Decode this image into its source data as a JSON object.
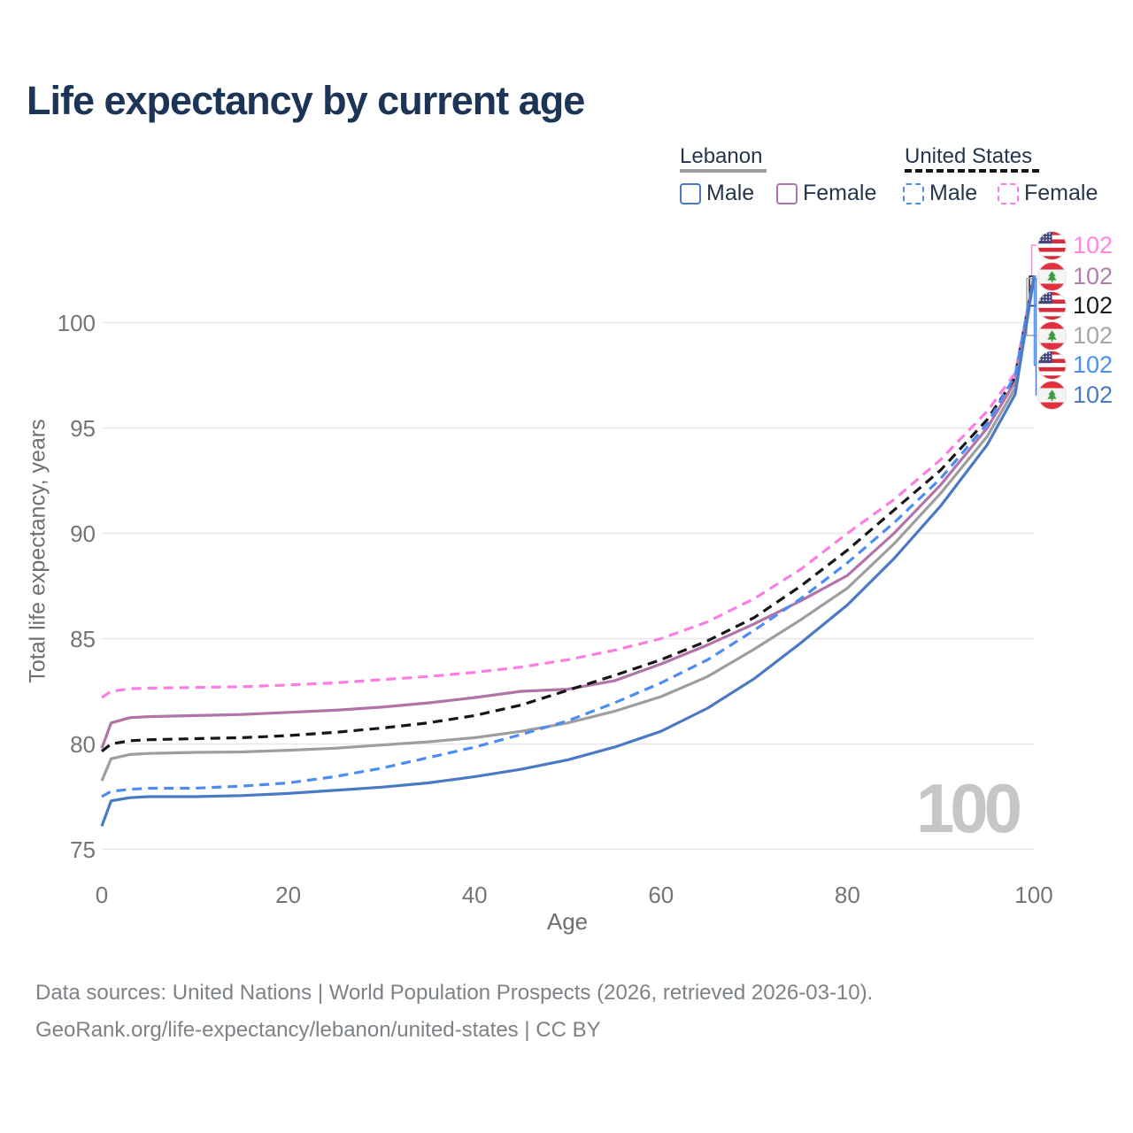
{
  "page": {
    "title": "Life expectancy by current age"
  },
  "legend": {
    "lebanon": {
      "title": "Lebanon",
      "male_label": "Male",
      "female_label": "Female",
      "male_color": "#4a7ac4",
      "female_color": "#b273a9",
      "underline_color": "#9e9e9e",
      "underline_style": "solid"
    },
    "united_states": {
      "title": "United States",
      "male_label": "Male",
      "female_label": "Female",
      "male_color": "#4b8cf5",
      "female_color": "#fb7de4",
      "underline_color": "#161616",
      "underline_style": "dashed"
    }
  },
  "watermark": "100",
  "footer": {
    "line1": "Data sources: United Nations | World Population Prospects (2026, retrieved 2026-03-10).",
    "line2": "GeoRank.org/life-expectancy/lebanon/united-states | CC BY"
  },
  "chart_data": {
    "type": "line",
    "title": "Life expectancy by current age",
    "xlabel": "Age",
    "ylabel": "Total life expectancy, years",
    "xlim": [
      0,
      100
    ],
    "ylim": [
      74.5,
      103
    ],
    "x_ticks": [
      0,
      20,
      40,
      60,
      80,
      100
    ],
    "y_ticks": [
      75,
      80,
      85,
      90,
      95,
      100
    ],
    "grid": "horizontal-only",
    "legend_position": "top-right",
    "gridline_color": "#e8e8e8",
    "ages": [
      0,
      1,
      3,
      5,
      10,
      15,
      20,
      25,
      30,
      35,
      40,
      45,
      50,
      55,
      60,
      65,
      70,
      75,
      80,
      85,
      90,
      95,
      98,
      100
    ],
    "series": [
      {
        "name": "United States Female",
        "country": "united-states",
        "sex": "female",
        "line_style": "dashed",
        "color": "#fb7de4",
        "label_color": "#ff85e2",
        "end_label": "102",
        "values": [
          82.2,
          82.5,
          82.62,
          82.65,
          82.68,
          82.72,
          82.8,
          82.9,
          83.05,
          83.2,
          83.4,
          83.65,
          84.0,
          84.45,
          85.0,
          85.8,
          86.9,
          88.3,
          90.0,
          91.6,
          93.5,
          95.8,
          97.6,
          102.2
        ]
      },
      {
        "name": "Lebanon Female",
        "country": "lebanon",
        "sex": "female",
        "line_style": "solid",
        "color": "#b273a9",
        "label_color": "#b07fad",
        "end_label": "102",
        "values": [
          79.8,
          81.0,
          81.25,
          81.3,
          81.35,
          81.4,
          81.5,
          81.6,
          81.75,
          81.95,
          82.2,
          82.5,
          82.6,
          83.0,
          83.8,
          84.7,
          85.7,
          86.8,
          88.0,
          90.0,
          92.3,
          95.0,
          97.2,
          102.2
        ]
      },
      {
        "name": "United States Both sexes",
        "country": "united-states",
        "sex": "both",
        "line_style": "dashed",
        "color": "#161616",
        "label_color": "#1c1c1c",
        "end_label": "102",
        "values": [
          79.65,
          80.0,
          80.15,
          80.2,
          80.25,
          80.3,
          80.4,
          80.55,
          80.75,
          81.0,
          81.35,
          81.85,
          82.55,
          83.25,
          84.0,
          84.9,
          86.0,
          87.5,
          89.2,
          91.1,
          93.0,
          95.4,
          97.4,
          102.2
        ]
      },
      {
        "name": "Lebanon Both sexes",
        "country": "lebanon",
        "sex": "both",
        "line_style": "solid",
        "color": "#9e9e9e",
        "label_color": "#a6a6a6",
        "end_label": "102",
        "values": [
          78.25,
          79.3,
          79.5,
          79.55,
          79.6,
          79.62,
          79.7,
          79.8,
          79.95,
          80.1,
          80.3,
          80.6,
          81.0,
          81.55,
          82.25,
          83.2,
          84.5,
          85.9,
          87.4,
          89.5,
          91.9,
          94.6,
          96.9,
          102.1
        ]
      },
      {
        "name": "United States Male",
        "country": "united-states",
        "sex": "male",
        "line_style": "dashed",
        "color": "#4b8cf5",
        "label_color": "#4d8ff2",
        "end_label": "102",
        "values": [
          77.5,
          77.75,
          77.85,
          77.9,
          77.9,
          78.0,
          78.15,
          78.45,
          78.85,
          79.35,
          79.85,
          80.45,
          81.1,
          81.95,
          82.9,
          84.0,
          85.4,
          86.9,
          88.6,
          90.5,
          92.6,
          95.2,
          97.5,
          102.2
        ]
      },
      {
        "name": "Lebanon Male",
        "country": "lebanon",
        "sex": "male",
        "line_style": "solid",
        "color": "#4a7ac4",
        "label_color": "#4a7ac8",
        "end_label": "102",
        "values": [
          76.1,
          77.3,
          77.45,
          77.5,
          77.5,
          77.55,
          77.65,
          77.8,
          77.95,
          78.15,
          78.45,
          78.8,
          79.25,
          79.85,
          80.6,
          81.7,
          83.1,
          84.8,
          86.6,
          88.8,
          91.3,
          94.2,
          96.6,
          102.1
        ]
      }
    ]
  }
}
